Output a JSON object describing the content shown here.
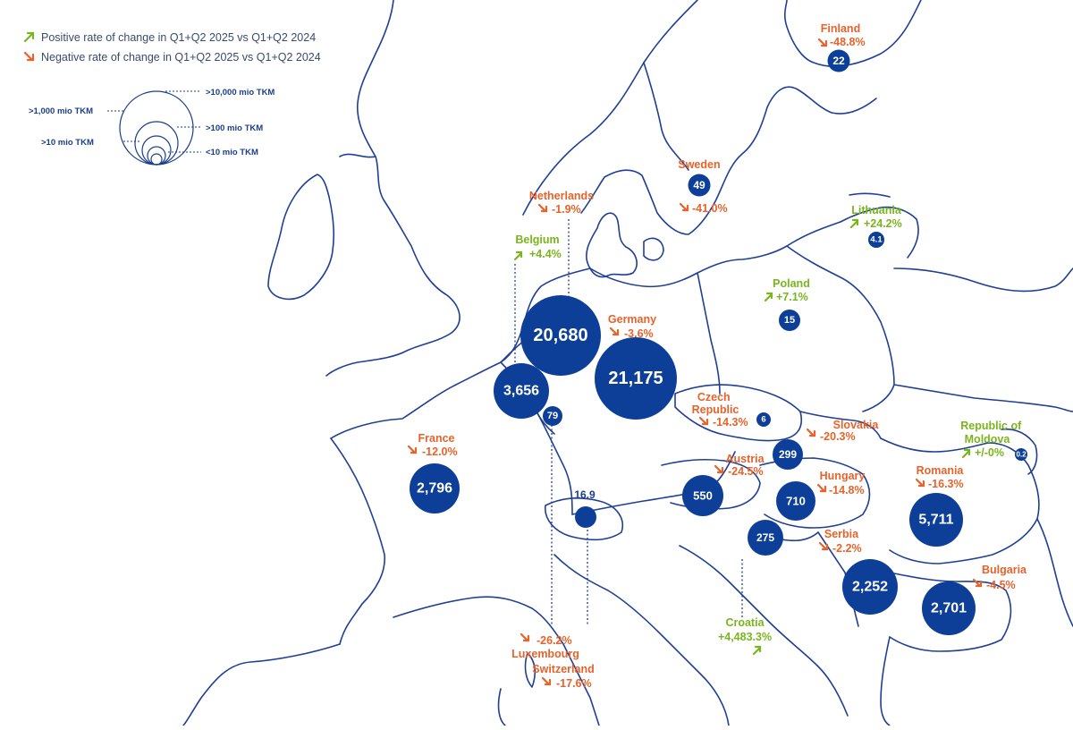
{
  "colors": {
    "border": "#1f3f96",
    "bubble": "#0d3f99",
    "positive": "#7ab51d",
    "negative": "#e8622a",
    "legend_text": "#3a4a6b"
  },
  "legend": {
    "positive_label": "Positive rate of change in Q1+Q2 2025 vs Q1+Q2 2024",
    "negative_label": "Negative rate of change  in Q1+Q2 2025 vs Q1+Q2 2024",
    "positive_icon": "arrow-up-right-icon",
    "negative_icon": "arrow-down-right-icon",
    "size_scale": [
      {
        "label": ">10,000 mio TKM"
      },
      {
        "label": ">1,000 mio TKM"
      },
      {
        "label": ">100 mio TKM"
      },
      {
        "label": ">10 mio TKM"
      },
      {
        "label": "<10 mio TKM"
      }
    ]
  },
  "countries": [
    {
      "name": "Finland",
      "change": "-48.8%",
      "trend": "negative",
      "value": "22"
    },
    {
      "name": "Sweden",
      "change": "-41.0%",
      "trend": "negative",
      "value": "49"
    },
    {
      "name": "Lithuania",
      "change": "+24.2%",
      "trend": "positive",
      "value": "4.1"
    },
    {
      "name": "Netherlands",
      "change": "-1.9%",
      "trend": "negative",
      "value": "20,680"
    },
    {
      "name": "Belgium",
      "change": "+4.4%",
      "trend": "positive",
      "value": "3,656"
    },
    {
      "name": "Poland",
      "change": "+7.1%",
      "trend": "positive",
      "value": "15"
    },
    {
      "name": "Germany",
      "change": "-3.6%",
      "trend": "negative",
      "value": "21,175"
    },
    {
      "name": "Czech Republic",
      "change": "-14.3%",
      "trend": "negative",
      "value": "6"
    },
    {
      "name": "Slovakia",
      "change": "-20.3%",
      "trend": "negative",
      "value": "299"
    },
    {
      "name": "Republic of Moldova",
      "change": "+/-0%",
      "trend": "positive",
      "value": "0.2"
    },
    {
      "name": "France",
      "change": "-12.0%",
      "trend": "negative",
      "value": "2,796"
    },
    {
      "name": "Austria",
      "change": "-24.5%",
      "trend": "negative",
      "value": "550"
    },
    {
      "name": "Hungary",
      "change": "-14.8%",
      "trend": "negative",
      "value": "710"
    },
    {
      "name": "Romania",
      "change": "-16.3%",
      "trend": "negative",
      "value": "5,711"
    },
    {
      "name": "Serbia",
      "change": "-2.2%",
      "trend": "negative",
      "value": "2,252"
    },
    {
      "name": "Bulgaria",
      "change": "-4.5%",
      "trend": "negative",
      "value": "2,701"
    },
    {
      "name": "Croatia",
      "change": "+4,483.3%",
      "trend": "positive",
      "value": "275"
    },
    {
      "name": "Luxembourg",
      "change": "-26.2%",
      "trend": "negative",
      "value": "79"
    },
    {
      "name": "Switzerland",
      "change": "-17.6%",
      "trend": "negative",
      "value": "16.9"
    }
  ]
}
